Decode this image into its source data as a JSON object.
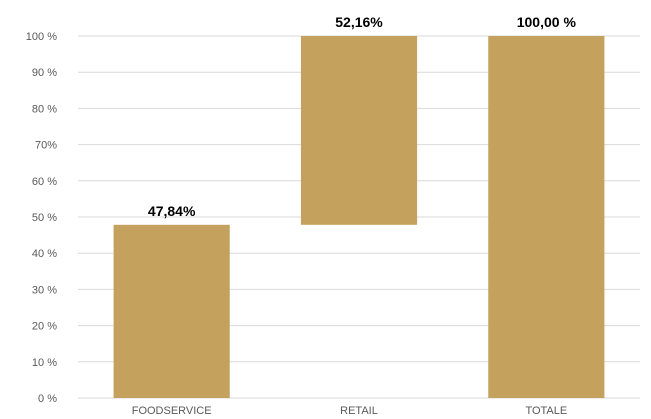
{
  "chart_data": {
    "type": "bar",
    "subtype": "waterfall",
    "categories": [
      "FOODSERVICE",
      "RETAIL",
      "TOTALE"
    ],
    "series": [
      {
        "values": [
          47.84,
          52.16,
          100.0
        ],
        "bases": [
          0,
          47.84,
          0
        ]
      }
    ],
    "data_labels": [
      "47,84%",
      "52,16%",
      "100,00 %"
    ],
    "y_ticks": [
      0,
      10,
      20,
      30,
      40,
      50,
      60,
      70,
      80,
      90,
      100
    ],
    "y_tick_labels": [
      "0 %",
      "10 %",
      "20 %",
      "30 %",
      "40 %",
      "50 %",
      "60 %",
      "70%",
      "80 %",
      "90 %",
      "100 %"
    ],
    "ylim": [
      0,
      100
    ],
    "grid": true,
    "legend": "none",
    "title": "",
    "xlabel": "",
    "ylabel": "",
    "colors": {
      "bar": "#c5a15e",
      "grid": "#d9d9d9",
      "tick_text": "#595959",
      "label_text": "#000000"
    }
  }
}
